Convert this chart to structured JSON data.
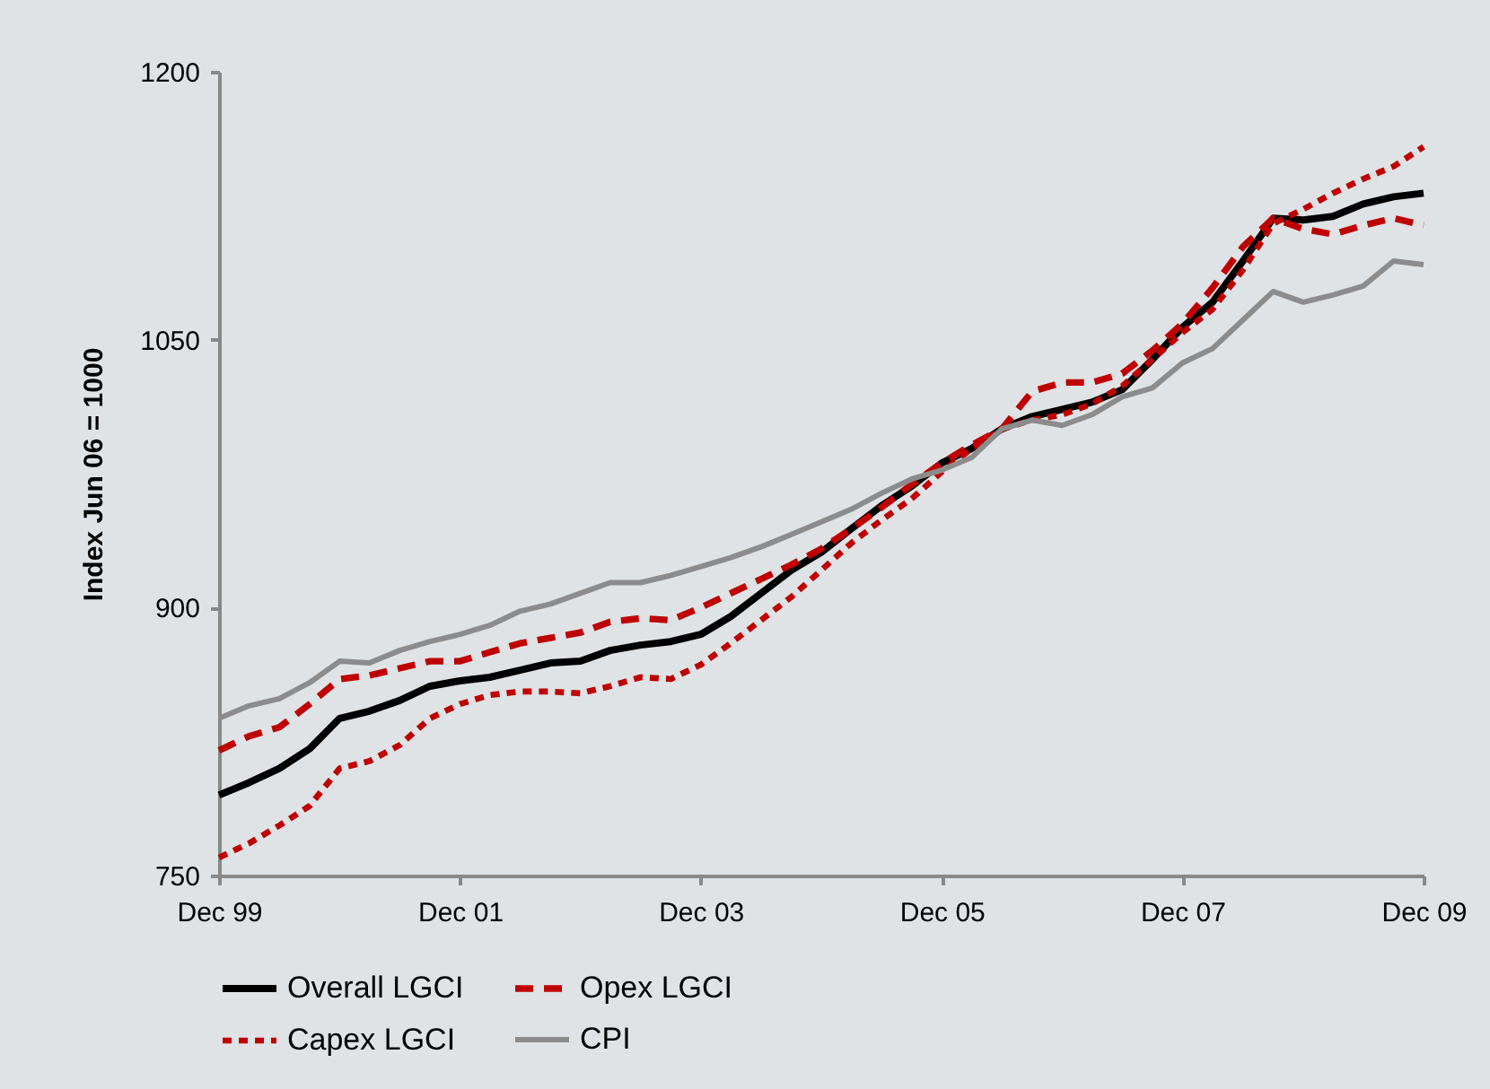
{
  "chart_data": {
    "type": "line",
    "ylabel": "Index Jun 06 = 1000",
    "x": [
      "1999-12",
      "2000-03",
      "2000-06",
      "2000-09",
      "2000-12",
      "2001-03",
      "2001-06",
      "2001-09",
      "2001-12",
      "2002-03",
      "2002-06",
      "2002-09",
      "2002-12",
      "2003-03",
      "2003-06",
      "2003-09",
      "2003-12",
      "2004-03",
      "2004-06",
      "2004-09",
      "2004-12",
      "2005-03",
      "2005-06",
      "2005-09",
      "2005-12",
      "2006-03",
      "2006-06",
      "2006-09",
      "2006-12",
      "2007-03",
      "2007-06",
      "2007-09",
      "2007-12",
      "2008-03",
      "2008-06",
      "2008-09",
      "2008-12",
      "2009-03",
      "2009-06",
      "2009-09",
      "2009-12"
    ],
    "series": [
      {
        "name": "Overall LGCI",
        "color": "#000000",
        "line_style": "solid",
        "values": [
          795,
          802,
          810,
          821,
          838,
          842,
          848,
          856,
          859,
          861,
          865,
          869,
          870,
          876,
          879,
          881,
          885,
          895,
          908,
          921,
          931,
          944,
          957,
          968,
          981,
          989,
          1000,
          1007,
          1011,
          1015,
          1022,
          1039,
          1057,
          1071,
          1094,
          1118,
          1117,
          1119,
          1126,
          1130,
          1132
        ]
      },
      {
        "name": "Opex LGCI",
        "color": "#c00000",
        "line_style": "dashed",
        "values": [
          820,
          828,
          833,
          846,
          860,
          862,
          866,
          870,
          870,
          875,
          880,
          883,
          886,
          892,
          894,
          893,
          900,
          908,
          916,
          924,
          933,
          944,
          956,
          969,
          981,
          991,
          1000,
          1021,
          1026,
          1026,
          1031,
          1044,
          1059,
          1079,
          1102,
          1118,
          1112,
          1109,
          1114,
          1118,
          1114
        ]
      },
      {
        "name": "Capex LGCI",
        "color": "#c00000",
        "line_style": "dotted",
        "values": [
          760,
          768,
          778,
          789,
          810,
          814,
          823,
          838,
          846,
          851,
          853,
          853,
          852,
          856,
          861,
          860,
          868,
          880,
          893,
          906,
          921,
          936,
          949,
          961,
          976,
          989,
          1000,
          1005,
          1008,
          1014,
          1024,
          1039,
          1054,
          1067,
          1089,
          1115,
          1123,
          1132,
          1140,
          1147,
          1158
        ]
      },
      {
        "name": "CPI",
        "color": "#8c8c8c",
        "line_style": "solid",
        "values": [
          838,
          845,
          849,
          858,
          870,
          869,
          876,
          881,
          885,
          890,
          898,
          902,
          908,
          914,
          914,
          918,
          923,
          928,
          934,
          941,
          948,
          955,
          964,
          972,
          977,
          984,
          1000,
          1005,
          1002,
          1008,
          1018,
          1023,
          1037,
          1045,
          1061,
          1077,
          1071,
          1075,
          1080,
          1094,
          1092
        ]
      }
    ],
    "xlim": [
      "1999-12",
      "2009-12"
    ],
    "xticks": [
      {
        "value": "1999-12",
        "label": "Dec 99"
      },
      {
        "value": "2001-12",
        "label": "Dec 01"
      },
      {
        "value": "2003-12",
        "label": "Dec 03"
      },
      {
        "value": "2005-12",
        "label": "Dec 05"
      },
      {
        "value": "2007-12",
        "label": "Dec 07"
      },
      {
        "value": "2009-12",
        "label": "Dec 09"
      }
    ],
    "ylim": [
      750,
      1200
    ],
    "yticks": [
      750,
      900,
      1050,
      1200
    ],
    "grid": false,
    "legend": "bottom",
    "marker": "none"
  }
}
